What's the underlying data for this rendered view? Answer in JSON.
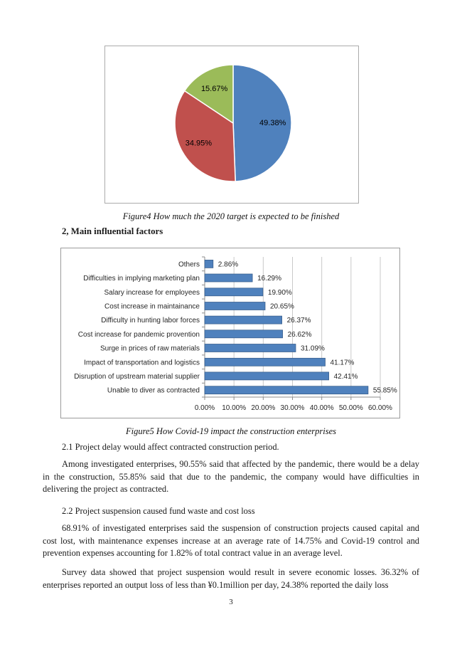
{
  "figure4": {
    "caption": "Figure4 How much the 2020 target is expected to be finished"
  },
  "section": {
    "heading": "2, Main influential factors"
  },
  "figure5": {
    "caption": "Figure5 How Covid-19 impact the construction enterprises"
  },
  "chart_data": [
    {
      "type": "pie",
      "title": "Figure4 How much the 2020 target is expected to be finished",
      "start_angle_deg": 0,
      "direction": "clockwise",
      "labels_inside": true,
      "slices": [
        {
          "label": "49.38%",
          "value": 49.38,
          "color": "#4F81BD"
        },
        {
          "label": "34.95%",
          "value": 34.95,
          "color": "#C0504D"
        },
        {
          "label": "15.67%",
          "value": 15.67,
          "color": "#9BBB59"
        }
      ]
    },
    {
      "type": "bar",
      "orientation": "horizontal",
      "title": "Figure5 How Covid-19 impact the construction enterprises",
      "categories": [
        "Others",
        "Difficulties in implying marketing plan",
        "Salary increase for employees",
        "Cost increase in maintainance",
        "Difficulty in hunting labor forces",
        "Cost increase for pandemic provention",
        "Surge in prices of raw materials",
        "Impact of transportation and logistics",
        "Disruption of upstream material supplier",
        "Unable to diver as contracted"
      ],
      "values": [
        2.86,
        16.29,
        19.9,
        20.65,
        26.37,
        26.62,
        31.09,
        41.17,
        42.41,
        55.85
      ],
      "value_labels": [
        "2.86%",
        "16.29%",
        "19.90%",
        "20.65%",
        "26.37%",
        "26.62%",
        "31.09%",
        "41.17%",
        "42.41%",
        "55.85%"
      ],
      "xlim": [
        0,
        60
      ],
      "x_tick_step": 10,
      "x_tick_labels": [
        "0.00%",
        "10.00%",
        "20.00%",
        "30.00%",
        "40.00%",
        "50.00%",
        "60.00%"
      ],
      "grid": true,
      "bar_color": "#4F81BD",
      "bar_border_color": "#385D8A",
      "gridline_color": "#c9c9c9",
      "axis_color": "#8c8c8c"
    }
  ],
  "paragraphs": [
    "2.1 Project delay would affect contracted construction period.",
    "Among investigated enterprises, 90.55% said that affected by the pandemic, there would be a delay in the construction, 55.85% said that due to the pandemic, the company would have difficulties in delivering the project as contracted.",
    "2.2 Project suspension caused fund waste and cost loss",
    "68.91% of investigated enterprises said the suspension of construction projects caused capital and cost lost, with maintenance expenses increase at an average rate of 14.75% and Covid-19 control and prevention expenses accounting for 1.82% of total contract value in an average level.",
    "Survey data showed that project suspension would result in severe economic losses. 36.32% of enterprises reported an output loss of less than ¥0.1million per day, 24.38% reported the daily loss"
  ],
  "page": {
    "number": "3"
  }
}
